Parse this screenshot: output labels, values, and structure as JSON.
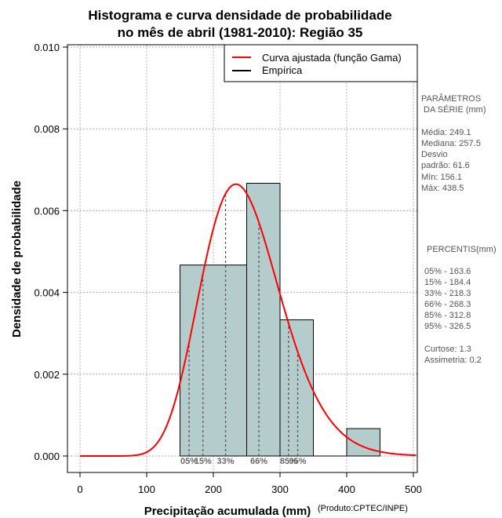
{
  "chart_data": {
    "type": "bar",
    "title_line1": "Histograma e curva densidade de probabilidade",
    "title_line2": "no mês de abril (1981-2010): Região 35",
    "xlabel": "Precipitação acumulada (mm)",
    "ylabel": "Densidade de probabilidade",
    "credit": "(Produto:CPTEC/INPE)",
    "xlim": [
      -12,
      505
    ],
    "ylim": [
      -0.0004,
      0.0101
    ],
    "x_ticks": [
      0,
      100,
      200,
      300,
      400,
      500
    ],
    "x_tick_labels": [
      "0",
      "100",
      "200",
      "300",
      "400",
      "500"
    ],
    "y_ticks": [
      0,
      0.002,
      0.004,
      0.006,
      0.008,
      0.01
    ],
    "y_tick_labels": [
      "0.000",
      "0.002",
      "0.004",
      "0.006",
      "0.008",
      "0.010"
    ],
    "grid": true,
    "bins": [
      {
        "x0": 150,
        "x1": 250,
        "density": 0.00467
      },
      {
        "x0": 250,
        "x1": 300,
        "density": 0.00667
      },
      {
        "x0": 300,
        "x1": 350,
        "density": 0.00333
      },
      {
        "x0": 350,
        "x1": 400,
        "density": 0
      },
      {
        "x0": 400,
        "x1": 450,
        "density": 0.00067
      }
    ],
    "gamma_fit": {
      "name": "Curva ajustada (função Gama)",
      "color": "#ff0000",
      "mean": 249.1,
      "sd": 61.6
    },
    "empirical": {
      "name": "Empírica",
      "color": "#000000"
    },
    "legend_position": "top-right",
    "percentiles": [
      {
        "label": "05%",
        "value": 163.6
      },
      {
        "label": "15%",
        "value": 184.4
      },
      {
        "label": "33%",
        "value": 218.3
      },
      {
        "label": "66%",
        "value": 268.3
      },
      {
        "label": "85%",
        "value": 312.8
      },
      {
        "label": "95%",
        "value": 326.5
      }
    ],
    "bar_color": "#b4cccc"
  },
  "side_panel": {
    "params_title_1": "PARÂMETROS",
    "params_title_2": " DA SÉRIE (mm)",
    "media": "Média:  249.1",
    "mediana": "Mediana:  257.5",
    "desvio_1": "Desvio",
    "desvio_2": "padrão:  61.6",
    "min": "Mín:  156.1",
    "max": "Máx:  438.5",
    "percentis_title": "PERCENTIS(mm)",
    "p05": "05% -  163.6",
    "p15": "15% -  184.4",
    "p33": "33% -  218.3",
    "p66": "66% -  268.3",
    "p85": "85% -  312.8",
    "p95": "95% -  326.5",
    "curtose": "Curtose:  1.3",
    "assimetria": "Assimetria:  0.2"
  }
}
